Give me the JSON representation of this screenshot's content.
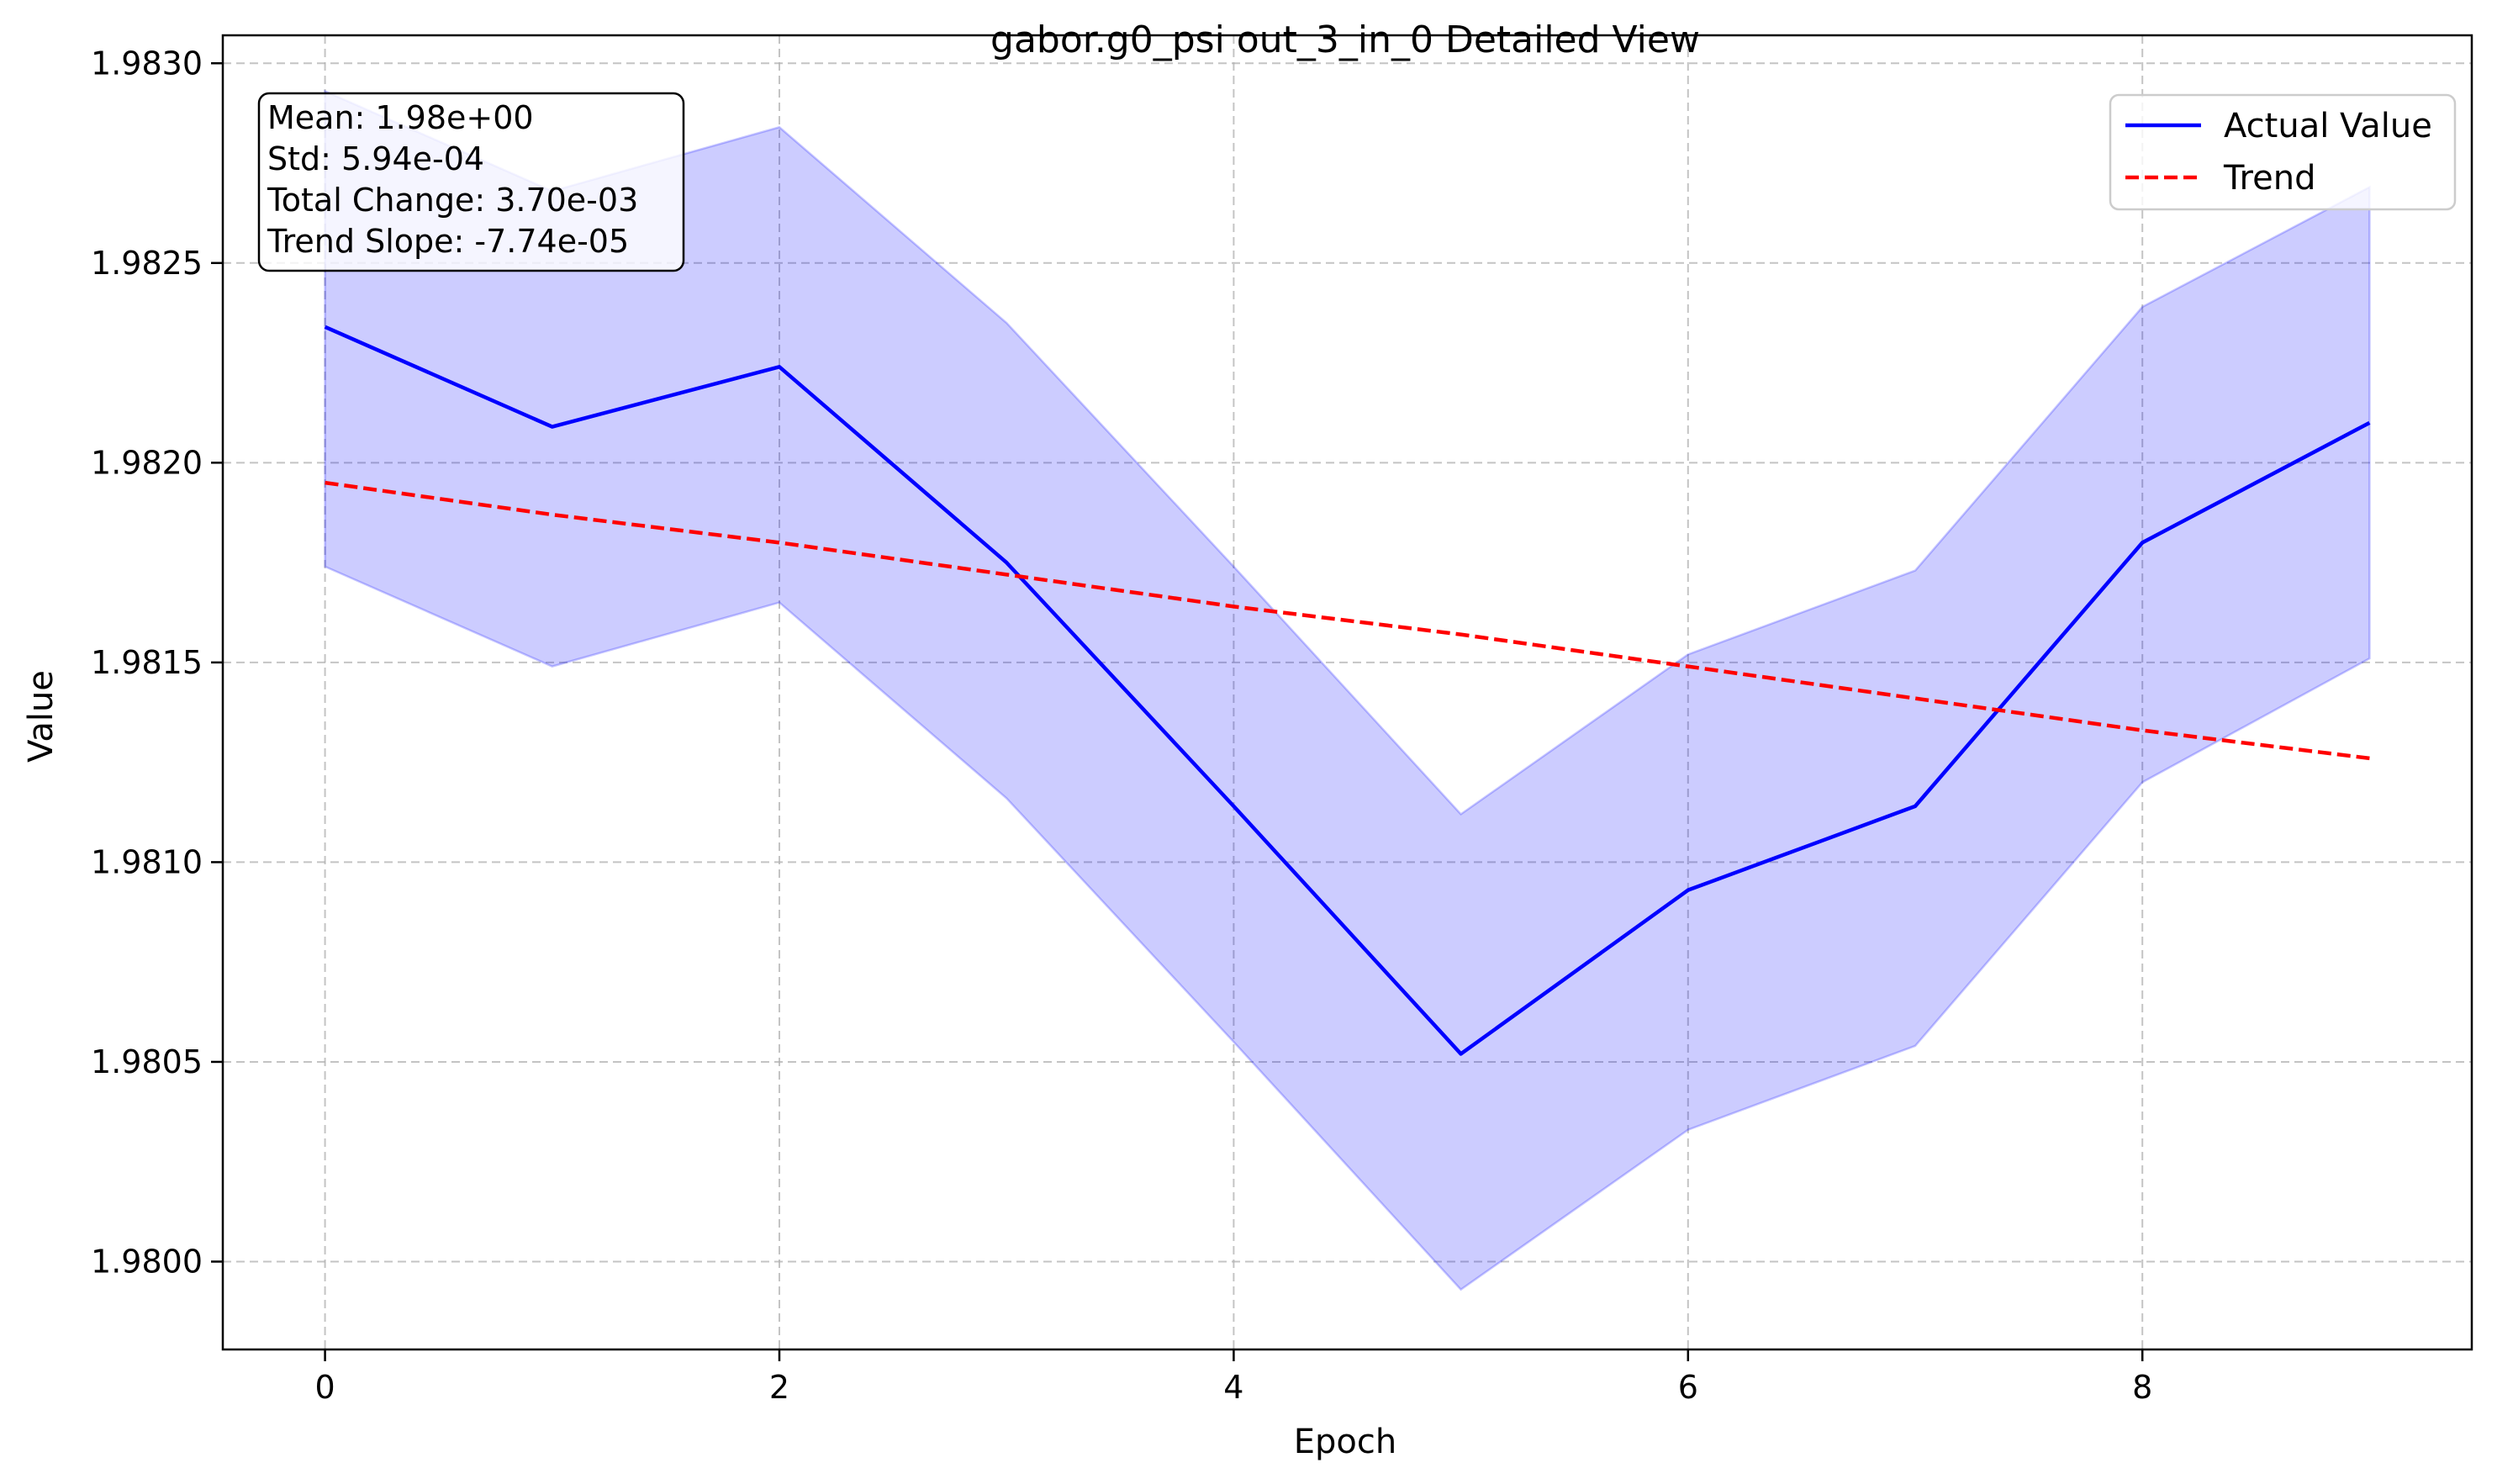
{
  "chart_data": {
    "type": "line",
    "title": "gabor.g0_psi out_3_in_0 Detailed View",
    "xlabel": "Epoch",
    "ylabel": "Value",
    "xlim": [
      -0.45,
      9.45
    ],
    "ylim": [
      1.97978,
      1.98307
    ],
    "x_ticks": [
      0,
      2,
      4,
      6,
      8
    ],
    "x_tick_labels": [
      "0",
      "2",
      "4",
      "6",
      "8"
    ],
    "y_ticks": [
      1.98,
      1.9805,
      1.981,
      1.9815,
      1.982,
      1.9825,
      1.983
    ],
    "y_tick_labels": [
      "1.9800",
      "1.9805",
      "1.9810",
      "1.9815",
      "1.9820",
      "1.9825",
      "1.9830"
    ],
    "grid": true,
    "legend_position": "top-right",
    "x": [
      0,
      1,
      2,
      3,
      4,
      5,
      6,
      7,
      8,
      9
    ],
    "series": [
      {
        "name": "Actual Value",
        "style": "solid",
        "color": "#0000ff",
        "values": [
          1.98234,
          1.98209,
          1.98224,
          1.98175,
          1.98114,
          1.98052,
          1.98093,
          1.98114,
          1.9818,
          1.9821
        ]
      },
      {
        "name": "Trend",
        "style": "dashed",
        "color": "#ff0000",
        "values": [
          1.98195,
          1.98187,
          1.9818,
          1.98172,
          1.98164,
          1.98157,
          1.98149,
          1.98141,
          1.98133,
          1.98126
        ]
      }
    ],
    "band": {
      "color": "#0000ff",
      "opacity": 0.2,
      "upper": [
        1.98293,
        1.98268,
        1.98284,
        1.98235,
        1.98174,
        1.98112,
        1.98152,
        1.98173,
        1.98239,
        1.98269
      ],
      "lower": [
        1.98174,
        1.98149,
        1.98165,
        1.98116,
        1.98055,
        1.97993,
        1.98033,
        1.98054,
        1.9812,
        1.98151
      ]
    },
    "annotation": {
      "lines": [
        "Mean: 1.98e+00",
        "Std: 5.94e-04",
        "Total Change: 3.70e-03",
        "Trend Slope: -7.74e-05"
      ],
      "position": "top-left"
    }
  }
}
